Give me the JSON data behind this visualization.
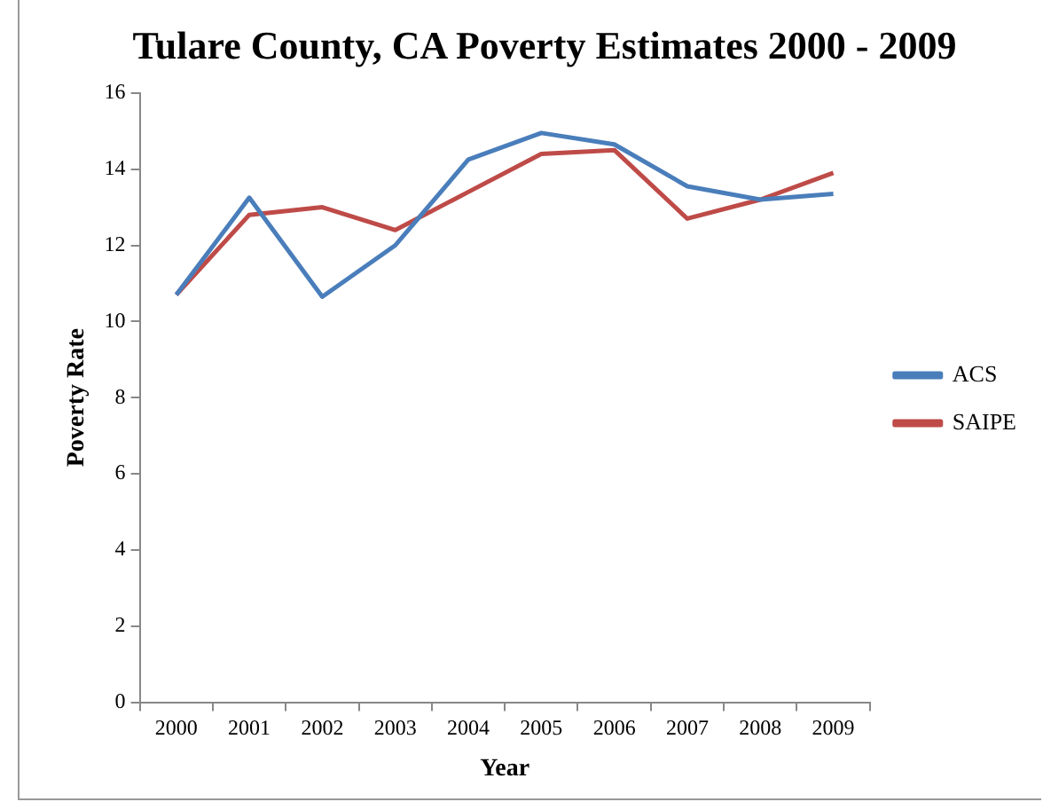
{
  "chart_data": {
    "type": "line",
    "title": "Tulare County, CA Poverty Estimates 2000 - 2009",
    "xlabel": "Year",
    "ylabel": "Poverty Rate",
    "categories": [
      "2000",
      "2001",
      "2002",
      "2003",
      "2004",
      "2005",
      "2006",
      "2007",
      "2008",
      "2009"
    ],
    "series": [
      {
        "name": "ACS",
        "color": "#4a7ebb",
        "values": [
          10.7,
          13.25,
          10.65,
          12.0,
          14.25,
          14.95,
          14.65,
          13.55,
          13.2,
          13.35
        ]
      },
      {
        "name": "SAIPE",
        "color": "#be4b48",
        "values": [
          10.7,
          12.8,
          13.0,
          12.4,
          13.4,
          14.4,
          14.5,
          12.7,
          13.2,
          13.9
        ]
      }
    ],
    "ylim": [
      0,
      16
    ],
    "yticks": [
      0,
      2,
      4,
      6,
      8,
      10,
      12,
      14,
      16
    ],
    "grid": false,
    "legend": "right",
    "marker": "none",
    "line_style": "solid"
  }
}
